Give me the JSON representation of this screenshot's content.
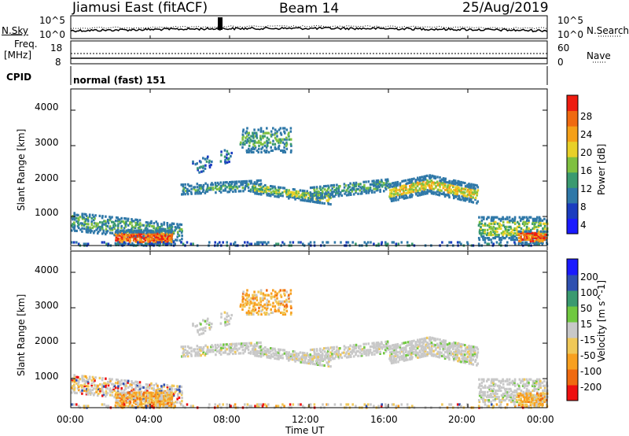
{
  "header": {
    "station": "Jiamusi East (fitACF)",
    "beam": "Beam 14",
    "date": "25/Aug/2019"
  },
  "noise_panel": {
    "left_label": "N.Sky",
    "right_label": "N.Search",
    "left_ticks": [
      "10^5",
      "10^0"
    ],
    "right_ticks": [
      "10^5",
      "10^0"
    ]
  },
  "freq_panel": {
    "left_label_line1": "Freq.",
    "left_label_line2": "[MHz]",
    "left_ticks": [
      "18",
      "8"
    ],
    "right_label": "Nave",
    "right_ticks": [
      "60",
      "0"
    ]
  },
  "cpid_panel": {
    "label": "CPID",
    "mode": "normal (fast) 151"
  },
  "colors": {
    "power": [
      "#1a1aff",
      "#1a3cc0",
      "#2f78a8",
      "#3a9a70",
      "#7fc040",
      "#e8d028",
      "#f5a018",
      "#f06a10",
      "#ee1c10"
    ],
    "velocity": [
      "#ee1010",
      "#f06a10",
      "#f8a020",
      "#f0c858",
      "#c8c8c8",
      "#70c840",
      "#3a9a70",
      "#2f50b0",
      "#1a1aff"
    ]
  },
  "chart_data": [
    {
      "type": "heatmap",
      "name": "Power",
      "ylabel": "Slant Range [km]",
      "y_ticks": [
        "1000",
        "2000",
        "3000",
        "4000"
      ],
      "ylim": [
        180,
        4600
      ],
      "colorbar_label": "Power [dB]",
      "colorbar_ticks": [
        "4",
        "8",
        "12",
        "16",
        "20",
        "24",
        "28"
      ],
      "color_range": [
        0,
        32
      ]
    },
    {
      "type": "heatmap",
      "name": "Velocity",
      "ylabel": "Slant Range [km]",
      "y_ticks": [
        "1000",
        "2000",
        "3000",
        "4000"
      ],
      "ylim": [
        180,
        4600
      ],
      "colorbar_label": "Velocity [m s^-1]",
      "colorbar_ticks": [
        "200",
        "100",
        "50",
        "15",
        "-15",
        "-50",
        "-100",
        "-200"
      ]
    }
  ],
  "x_axis": {
    "label": "Time UT",
    "ticks": [
      "00:00",
      "04:00",
      "08:00",
      "12:00",
      "16:00",
      "20:00",
      "00:00"
    ]
  }
}
